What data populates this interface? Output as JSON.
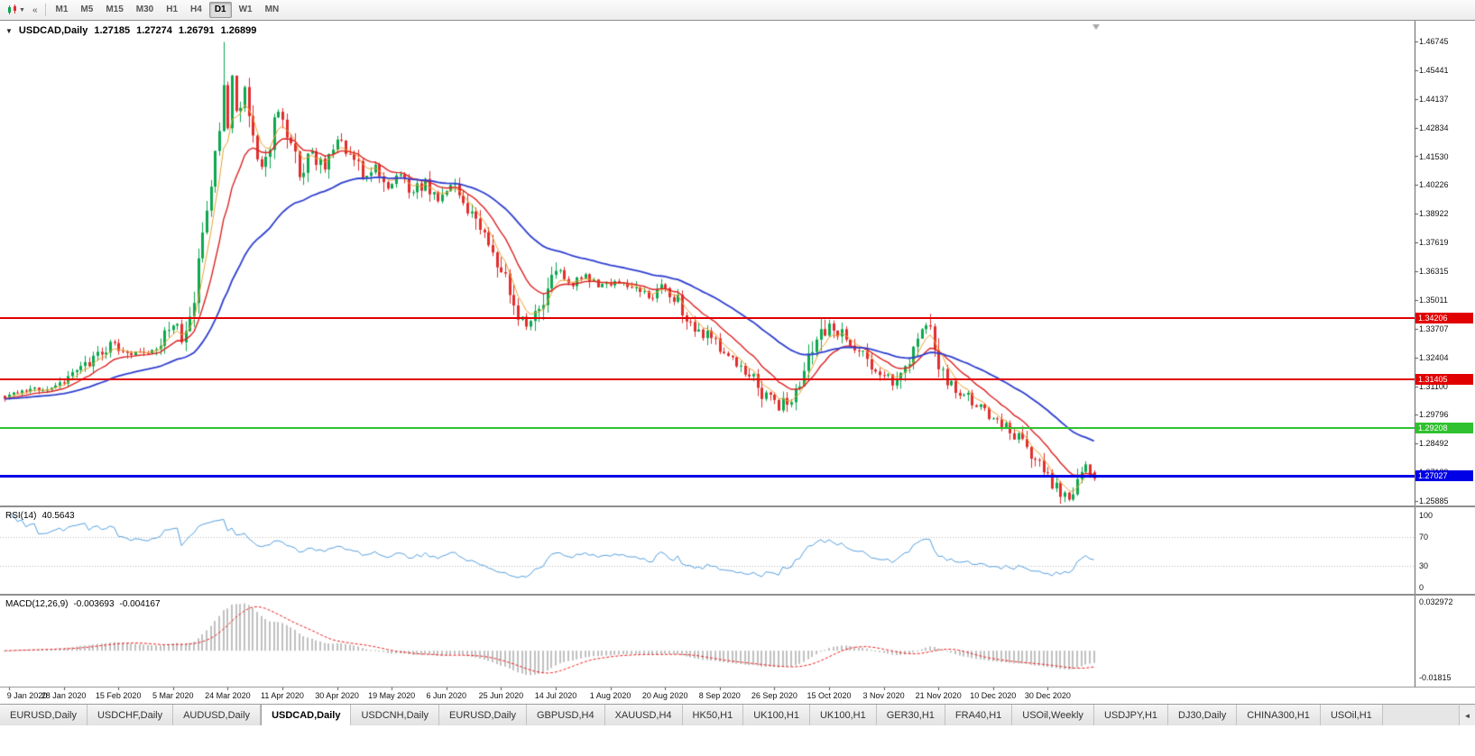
{
  "toolbar": {
    "timeframes": [
      {
        "label": "M1",
        "active": false
      },
      {
        "label": "M5",
        "active": false
      },
      {
        "label": "M15",
        "active": false
      },
      {
        "label": "M30",
        "active": false
      },
      {
        "label": "H1",
        "active": false
      },
      {
        "label": "H4",
        "active": false
      },
      {
        "label": "D1",
        "active": true
      },
      {
        "label": "W1",
        "active": false
      },
      {
        "label": "MN",
        "active": false
      }
    ]
  },
  "chart": {
    "title_symbol": "USDCAD,Daily",
    "ohlc": {
      "open": "1.27185",
      "high": "1.27274",
      "low": "1.26791",
      "close": "1.26899"
    }
  },
  "rsi": {
    "label": "RSI(14)",
    "value": "40.5643",
    "axis_labels": [
      "100",
      "70",
      "30",
      "0"
    ],
    "levels": [
      70,
      30
    ],
    "color": "#55a1e0"
  },
  "macd": {
    "label": "MACD(12,26,9)",
    "value_main": "-0.003693",
    "value_signal": "-0.004167",
    "axis_max": "0.032972",
    "axis_min": "-0.01815",
    "histogram_color": "#c0c0c0",
    "signal_color": "#f02020"
  },
  "tabs": [
    {
      "label": "EURUSD,Daily",
      "active": false
    },
    {
      "label": "USDCHF,Daily",
      "active": false
    },
    {
      "label": "AUDUSD,Daily",
      "active": false
    },
    {
      "label": "USDCAD,Daily",
      "active": true
    },
    {
      "label": "USDCNH,Daily",
      "active": false
    },
    {
      "label": "EURUSD,Daily",
      "active": false
    },
    {
      "label": "GBPUSD,H4",
      "active": false
    },
    {
      "label": "XAUUSD,H4",
      "active": false
    },
    {
      "label": "HK50,H1",
      "active": false
    },
    {
      "label": "UK100,H1",
      "active": false
    },
    {
      "label": "UK100,H1",
      "active": false
    },
    {
      "label": "GER30,H1",
      "active": false
    },
    {
      "label": "FRA40,H1",
      "active": false
    },
    {
      "label": "USOil,Weekly",
      "active": false
    },
    {
      "label": "USDJPY,H1",
      "active": false
    },
    {
      "label": "DJ30,Daily",
      "active": false
    },
    {
      "label": "CHINA300,H1",
      "active": false
    },
    {
      "label": "USOil,H1",
      "active": false
    }
  ],
  "tab_scroll_icon": "◄",
  "chart_data": {
    "type": "candlestick",
    "symbol": "USDCAD",
    "timeframe": "Daily",
    "bars": 260,
    "price_axis_labels": [
      "1.46745",
      "1.45441",
      "1.44137",
      "1.42834",
      "1.41530",
      "1.40226",
      "1.38922",
      "1.37619",
      "1.36315",
      "1.35011",
      "1.33707",
      "1.32404",
      "1.31100",
      "1.29796",
      "1.28492",
      "1.27189",
      "1.25885"
    ],
    "date_labels": [
      "9 Jan 2020",
      "28 Jan 2020",
      "15 Feb 2020",
      "5 Mar 2020",
      "24 Mar 2020",
      "11 Apr 2020",
      "30 Apr 2020",
      "19 May 2020",
      "6 Jun 2020",
      "25 Jun 2020",
      "14 Jul 2020",
      "1 Aug 2020",
      "20 Aug 2020",
      "8 Sep 2020",
      "26 Sep 2020",
      "15 Oct 2020",
      "3 Nov 2020",
      "21 Nov 2020",
      "10 Dec 2020",
      "30 Dec 2020"
    ],
    "date_label_start_index": 1,
    "date_label_step": 13,
    "levels": [
      {
        "price": 1.34206,
        "label": "1.34206",
        "color": "#e10000",
        "width": 2
      },
      {
        "price": 1.31405,
        "label": "1.31405",
        "color": "#e10000",
        "width": 2
      },
      {
        "price": 1.29208,
        "label": "1.29208",
        "color": "#2fc12f",
        "width": 2
      },
      {
        "price": 1.27027,
        "label": "1.27027",
        "color": "#0000e6",
        "width": 3
      }
    ],
    "price_path": [
      [
        0,
        1.306
      ],
      [
        6,
        1.3085
      ],
      [
        13,
        1.3125
      ],
      [
        20,
        1.3225
      ],
      [
        26,
        1.331
      ],
      [
        30,
        1.3245
      ],
      [
        36,
        1.3295
      ],
      [
        40,
        1.3385
      ],
      [
        42,
        1.3315
      ],
      [
        44,
        1.342
      ],
      [
        46,
        1.365
      ],
      [
        48,
        1.391
      ],
      [
        50,
        1.414
      ],
      [
        52,
        1.447
      ],
      [
        53,
        1.429
      ],
      [
        54,
        1.449
      ],
      [
        55,
        1.434
      ],
      [
        57,
        1.447
      ],
      [
        59,
        1.425
      ],
      [
        61,
        1.41
      ],
      [
        63,
        1.422
      ],
      [
        65,
        1.437
      ],
      [
        67,
        1.424
      ],
      [
        70,
        1.408
      ],
      [
        73,
        1.417
      ],
      [
        76,
        1.41
      ],
      [
        79,
        1.422
      ],
      [
        82,
        1.415
      ],
      [
        85,
        1.406
      ],
      [
        88,
        1.411
      ],
      [
        91,
        1.402
      ],
      [
        94,
        1.407
      ],
      [
        97,
        1.398
      ],
      [
        100,
        1.404
      ],
      [
        103,
        1.396
      ],
      [
        106,
        1.402
      ],
      [
        109,
        1.395
      ],
      [
        112,
        1.388
      ],
      [
        115,
        1.375
      ],
      [
        118,
        1.362
      ],
      [
        121,
        1.348
      ],
      [
        124,
        1.339
      ],
      [
        126,
        1.343
      ],
      [
        129,
        1.355
      ],
      [
        132,
        1.363
      ],
      [
        135,
        1.357
      ],
      [
        138,
        1.3605
      ],
      [
        141,
        1.355
      ],
      [
        145,
        1.359
      ],
      [
        149,
        1.3565
      ],
      [
        153,
        1.351
      ],
      [
        157,
        1.3565
      ],
      [
        160,
        1.349
      ],
      [
        163,
        1.3405
      ],
      [
        166,
        1.335
      ],
      [
        170,
        1.328
      ],
      [
        174,
        1.321
      ],
      [
        178,
        1.314
      ],
      [
        181,
        1.306
      ],
      [
        184,
        1.3
      ],
      [
        187,
        1.307
      ],
      [
        190,
        1.318
      ],
      [
        193,
        1.33
      ],
      [
        196,
        1.34
      ],
      [
        199,
        1.334
      ],
      [
        202,
        1.33
      ],
      [
        205,
        1.324
      ],
      [
        208,
        1.317
      ],
      [
        211,
        1.313
      ],
      [
        214,
        1.322
      ],
      [
        217,
        1.333
      ],
      [
        219,
        1.3375
      ],
      [
        221,
        1.3295
      ],
      [
        223,
        1.315
      ],
      [
        226,
        1.31
      ],
      [
        229,
        1.306
      ],
      [
        232,
        1.301
      ],
      [
        235,
        1.297
      ],
      [
        238,
        1.292
      ],
      [
        241,
        1.287
      ],
      [
        243,
        1.283
      ],
      [
        245,
        1.278
      ],
      [
        247,
        1.273
      ],
      [
        249,
        1.268
      ],
      [
        251,
        1.263
      ],
      [
        253,
        1.26
      ],
      [
        255,
        1.2665
      ],
      [
        257,
        1.2745
      ],
      [
        259,
        1.269
      ]
    ],
    "forced_last_bar": {
      "open": 1.27185,
      "high": 1.27274,
      "low": 1.26791,
      "close": 1.26899
    },
    "spike_high": {
      "index": 52,
      "price": 1.4672
    },
    "min_low": {
      "index": 253,
      "price": 1.2589
    },
    "noise_seed": 9,
    "colors": {
      "up": "#0da84f",
      "down": "#e12e2e"
    },
    "moving_averages": [
      {
        "period": 5,
        "color": "#eda22f",
        "width": 1
      },
      {
        "period": 13,
        "color": "#dd2222",
        "width": 1.4
      },
      {
        "period": 40,
        "color": "#2f3fd0",
        "width": 1.8
      }
    ],
    "rsi_period": 14,
    "macd_params": {
      "fast": 12,
      "slow": 26,
      "signal": 9
    }
  }
}
